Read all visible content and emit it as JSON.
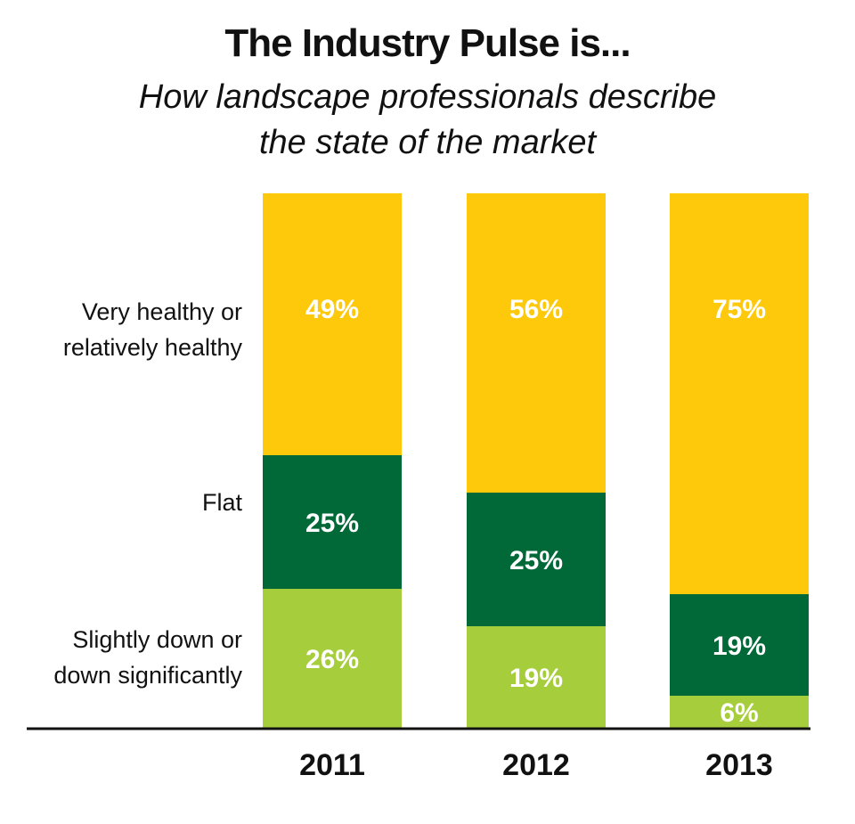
{
  "chart_data": {
    "type": "bar",
    "stacked": true,
    "title": "The Industry Pulse is...",
    "subtitle_lines": [
      "How landscape professionals describe",
      "the state of the market"
    ],
    "categories": [
      "2011",
      "2012",
      "2013"
    ],
    "series": [
      {
        "name": "Slightly down or down significantly",
        "name_lines": [
          "Slightly down or",
          "down significantly"
        ],
        "values": [
          26,
          19,
          6
        ],
        "color": "#a6cd3b"
      },
      {
        "name": "Flat",
        "name_lines": [
          "Flat"
        ],
        "values": [
          25,
          25,
          19
        ],
        "color": "#006937"
      },
      {
        "name": "Very healthy or relatively healthy",
        "name_lines": [
          "Very healthy or",
          "relatively healthy"
        ],
        "values": [
          49,
          56,
          75
        ],
        "color": "#fdc90a"
      }
    ],
    "unit": "%",
    "ylim": [
      0,
      100
    ],
    "grid": false,
    "legend": "left"
  }
}
